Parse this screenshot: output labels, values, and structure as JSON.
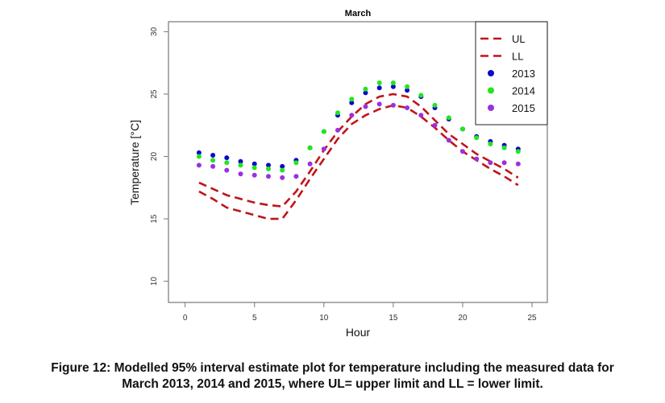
{
  "chart_data": {
    "type": "scatter",
    "title": "March",
    "xlabel": "Hour",
    "ylabel": "Temperature [°C]",
    "xlim": [
      -1.2,
      26.1
    ],
    "ylim": [
      8.3,
      30.8
    ],
    "xticks": [
      0,
      5,
      10,
      15,
      20,
      25
    ],
    "yticks": [
      10,
      15,
      20,
      25,
      30
    ],
    "grid": false,
    "legend_position": "top-right",
    "x": [
      1,
      2,
      3,
      4,
      5,
      6,
      7,
      8,
      9,
      10,
      11,
      12,
      13,
      14,
      15,
      16,
      17,
      18,
      19,
      20,
      21,
      22,
      23,
      24
    ],
    "series": [
      {
        "name": "UL",
        "kind": "dashed-line",
        "color": "#c0141a",
        "values": [
          17.9,
          17.4,
          16.9,
          16.6,
          16.3,
          16.1,
          16.0,
          17.2,
          18.8,
          20.5,
          22.0,
          23.2,
          24.2,
          24.8,
          25.0,
          24.8,
          24.0,
          22.9,
          21.8,
          21.0,
          20.2,
          19.6,
          19.0,
          18.3
        ]
      },
      {
        "name": "LL",
        "kind": "dashed-line",
        "color": "#c0141a",
        "values": [
          17.2,
          16.6,
          15.9,
          15.6,
          15.3,
          15.0,
          15.0,
          16.5,
          18.2,
          19.8,
          21.4,
          22.6,
          23.3,
          23.8,
          24.1,
          23.9,
          23.2,
          22.3,
          21.3,
          20.4,
          19.7,
          19.0,
          18.4,
          17.7
        ]
      },
      {
        "name": "2013",
        "kind": "points",
        "color": "#0a0ac8",
        "values": [
          20.3,
          20.1,
          19.9,
          19.6,
          19.4,
          19.3,
          19.2,
          19.7,
          20.7,
          22.0,
          23.3,
          24.3,
          25.1,
          25.5,
          25.6,
          25.3,
          24.8,
          23.9,
          23.0,
          22.2,
          21.6,
          21.2,
          20.9,
          20.6
        ]
      },
      {
        "name": "2014",
        "kind": "points",
        "color": "#22e61e",
        "values": [
          20.0,
          19.7,
          19.5,
          19.3,
          19.1,
          19.0,
          18.9,
          19.5,
          20.7,
          22.0,
          23.5,
          24.6,
          25.4,
          25.9,
          25.9,
          25.6,
          24.9,
          24.1,
          23.1,
          22.2,
          21.5,
          21.0,
          20.7,
          20.4
        ]
      },
      {
        "name": "2015",
        "kind": "points",
        "color": "#9b30e0",
        "values": [
          19.3,
          19.2,
          18.9,
          18.6,
          18.5,
          18.4,
          18.3,
          18.4,
          19.4,
          20.6,
          22.1,
          23.3,
          24.0,
          24.2,
          24.1,
          23.9,
          23.3,
          22.5,
          21.3,
          20.4,
          19.8,
          19.5,
          19.5,
          19.4
        ]
      }
    ]
  },
  "caption": {
    "line1": "Figure 12: Modelled 95% interval estimate plot for temperature including the measured data for",
    "line2": "March 2013, 2014 and 2015, where UL= upper limit and LL = lower limit."
  }
}
